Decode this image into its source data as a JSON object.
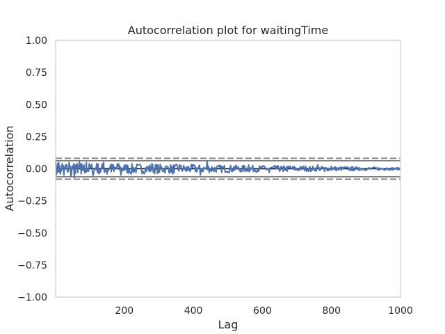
{
  "chart_data": {
    "type": "line",
    "title": "Autocorrelation plot for waitingTime",
    "xlabel": "Lag",
    "ylabel": "Autocorrelation",
    "xlim": [
      1,
      1000
    ],
    "ylim": [
      -1.0,
      1.0
    ],
    "xticks": [
      200,
      400,
      600,
      800,
      1000
    ],
    "yticks": [
      1.0,
      0.75,
      0.5,
      0.25,
      0.0,
      -0.25,
      -0.5,
      -0.75,
      -1.0
    ],
    "ytick_labels": [
      "1.00",
      "0.75",
      "0.50",
      "0.25",
      "0.00",
      "−0.25",
      "−0.50",
      "−0.75",
      "−1.00"
    ],
    "xtick_labels": [
      "200",
      "400",
      "600",
      "800",
      "1000"
    ],
    "grid": false,
    "confidence_bands": {
      "dashed_99": [
        0.0815,
        -0.0815
      ],
      "solid_95": [
        0.062,
        -0.062
      ],
      "zero_line": 0.0
    },
    "series_color": "#4c72b0",
    "band_color": "#808080",
    "series": [
      {
        "x": [
          1,
          5,
          10,
          15,
          20,
          25,
          30,
          35,
          40,
          45,
          50,
          55,
          60,
          65,
          70,
          75,
          80,
          85,
          90,
          95,
          100,
          110,
          120,
          130,
          140,
          150,
          160,
          170,
          180,
          190,
          200,
          220,
          240,
          260,
          280,
          300,
          320,
          340,
          360,
          380,
          400,
          420,
          440,
          460,
          480,
          500,
          520,
          540,
          560,
          580,
          600,
          620,
          640,
          660,
          680,
          700,
          720,
          740,
          760,
          780,
          800,
          820,
          840,
          860,
          880,
          900,
          920,
          940,
          960,
          980,
          1000
        ],
        "values": [
          0.06,
          -0.03,
          0.05,
          -0.04,
          0.04,
          -0.05,
          0.03,
          -0.02,
          0.05,
          -0.06,
          0.02,
          -0.07,
          0.03,
          -0.03,
          0.06,
          -0.04,
          0.02,
          -0.03,
          0.05,
          -0.02,
          0.03,
          -0.05,
          0.04,
          -0.03,
          0.05,
          -0.04,
          0.03,
          -0.02,
          0.04,
          -0.05,
          0.03,
          -0.04,
          0.03,
          -0.02,
          0.04,
          -0.03,
          0.02,
          -0.04,
          0.03,
          -0.02,
          0.03,
          -0.05,
          0.06,
          -0.02,
          0.02,
          -0.03,
          0.02,
          -0.02,
          0.03,
          -0.02,
          0.02,
          -0.03,
          0.02,
          -0.02,
          0.02,
          -0.01,
          0.02,
          -0.02,
          0.03,
          -0.02,
          0.02,
          -0.01,
          0.015,
          -0.015,
          0.01,
          -0.01,
          0.01,
          -0.008,
          0.006,
          -0.004,
          0.0
        ]
      }
    ]
  }
}
